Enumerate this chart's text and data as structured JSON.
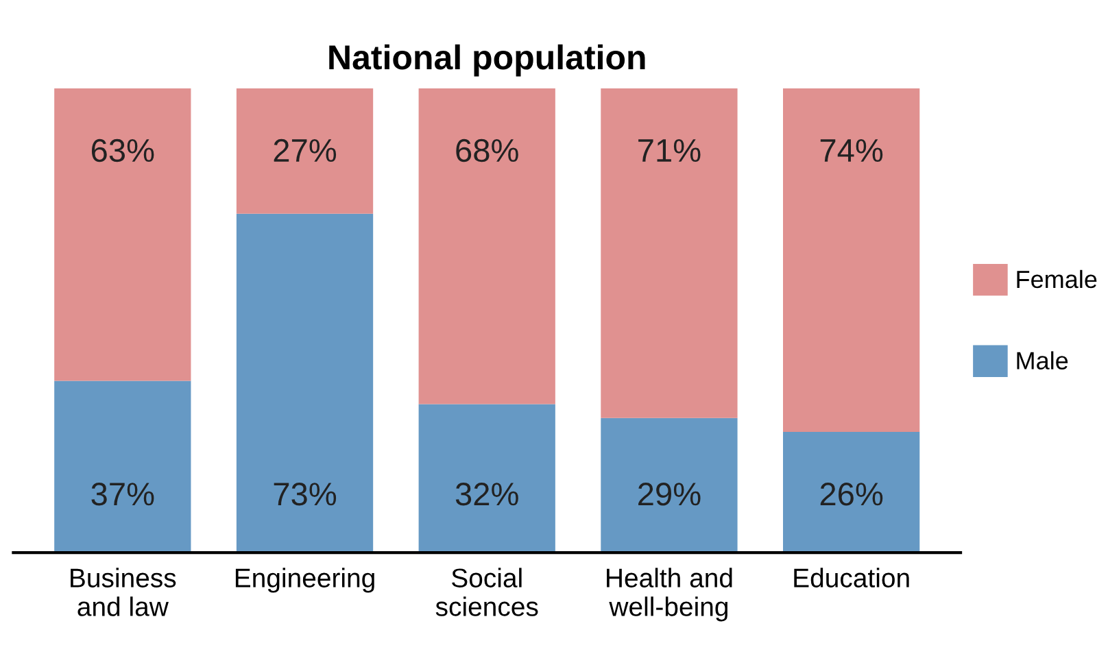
{
  "chart_data": {
    "type": "bar",
    "title": "National population",
    "stacked": true,
    "legend": "right",
    "grid": false,
    "tick_labels": "x",
    "categories": [
      "Business\nand law",
      "Engineering",
      "Social\nsciences",
      "Health and\nwell-being",
      "Education"
    ],
    "series": [
      {
        "name": "Male",
        "color": "#6699c4",
        "values": [
          37,
          73,
          32,
          29,
          26
        ],
        "value_labels": [
          "37%",
          "73%",
          "32%",
          "29%",
          "26%"
        ]
      },
      {
        "name": "Female",
        "color": "#e09190",
        "values": [
          63,
          27,
          68,
          71,
          74
        ],
        "value_labels": [
          "63%",
          "27%",
          "68%",
          "71%",
          "74%"
        ]
      }
    ]
  }
}
